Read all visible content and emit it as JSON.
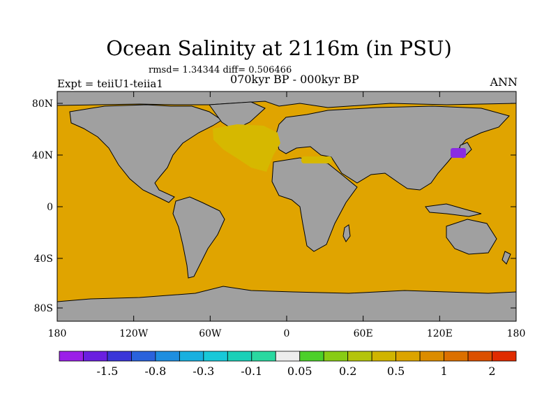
{
  "title": "Ocean Salinity at 2116m (in PSU)",
  "stats_text": "rmsd= 1.34344 diff= 0.506466",
  "period_text": "070kyr BP - 000kyr BP",
  "experiment_text": "Expt = teiiU1-teiia1",
  "season_text": "ANN",
  "map": {
    "lat_ticks": [
      "80N",
      "40N",
      "0",
      "40S",
      "80S"
    ],
    "lon_ticks": [
      "180",
      "120W",
      "60W",
      "0",
      "60E",
      "120E",
      "180"
    ],
    "ocean_color": "#e0a400",
    "land_color": "#a0a0a0",
    "coast_color": "#000000",
    "north_atlantic_anomaly_color": "#d6b800",
    "japan_anomaly_color": "#8a2be2"
  },
  "colorbar": {
    "colors": [
      "#9b1fe8",
      "#6a1fe0",
      "#3a36d8",
      "#2a62dc",
      "#1e8ee0",
      "#18b0e0",
      "#18c8d8",
      "#1ad0b8",
      "#2ad8a0",
      "#ededed",
      "#4cd02a",
      "#88cc14",
      "#b4c40c",
      "#d0b400",
      "#dca400",
      "#dc8c00",
      "#dc7000",
      "#dc5000",
      "#e02c00"
    ],
    "labels": [
      "-1.5",
      "-0.8",
      "-0.3",
      "-0.1",
      "0.05",
      "0.2",
      "0.5",
      "1",
      "2"
    ]
  }
}
